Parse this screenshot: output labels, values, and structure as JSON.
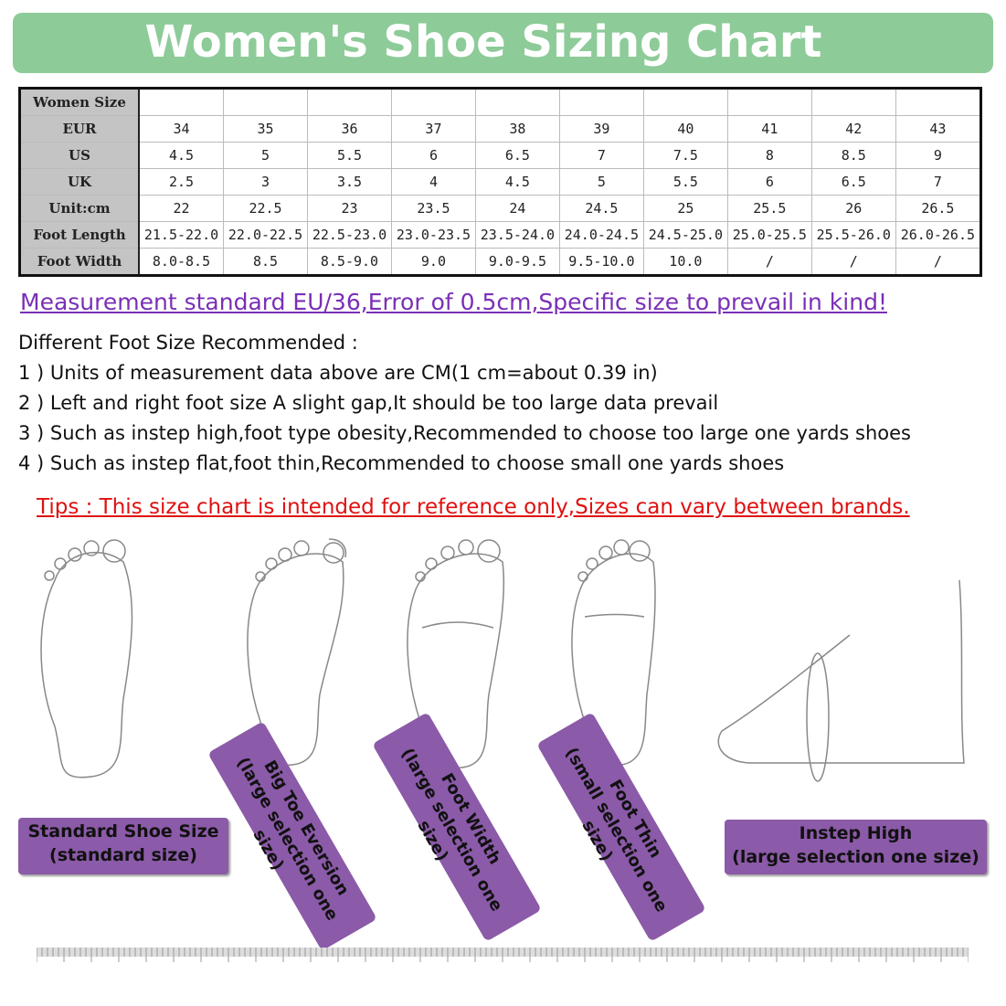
{
  "title": "Women's Shoe Sizing Chart",
  "table": {
    "rows": [
      {
        "label": "Women Size",
        "values": [
          "",
          "",
          "",
          "",
          "",
          "",
          "",
          "",
          "",
          ""
        ]
      },
      {
        "label": "EUR",
        "values": [
          "34",
          "35",
          "36",
          "37",
          "38",
          "39",
          "40",
          "41",
          "42",
          "43"
        ]
      },
      {
        "label": "US",
        "values": [
          "4.5",
          "5",
          "5.5",
          "6",
          "6.5",
          "7",
          "7.5",
          "8",
          "8.5",
          "9"
        ]
      },
      {
        "label": "UK",
        "values": [
          "2.5",
          "3",
          "3.5",
          "4",
          "4.5",
          "5",
          "5.5",
          "6",
          "6.5",
          "7"
        ]
      },
      {
        "label": "Unit:cm",
        "values": [
          "22",
          "22.5",
          "23",
          "23.5",
          "24",
          "24.5",
          "25",
          "25.5",
          "26",
          "26.5"
        ]
      },
      {
        "label": "Foot Length",
        "values": [
          "21.5-22.0",
          "22.0-22.5",
          "22.5-23.0",
          "23.0-23.5",
          "23.5-24.0",
          "24.0-24.5",
          "24.5-25.0",
          "25.0-25.5",
          "25.5-26.0",
          "26.0-26.5"
        ]
      },
      {
        "label": "Foot Width",
        "values": [
          "8.0-8.5",
          "8.5",
          "8.5-9.0",
          "9.0",
          "9.0-9.5",
          "9.5-10.0",
          "10.0",
          "/",
          "/",
          "/"
        ]
      }
    ]
  },
  "measurement": "Measurement standard EU/36,Error of 0.5cm,Specific size to prevail in kind!",
  "recommend": {
    "heading": "Different Foot Size Recommended :",
    "items": [
      "1 ) Units of measurement data above are CM(1 cm=about 0.39 in)",
      "2 ) Left and right foot size A slight gap,It should be too large data prevail",
      "3 ) Such as instep high,foot type obesity,Recommended to choose too large one yards shoes",
      "4 ) Such as instep flat,foot thin,Recommended to choose small one yards shoes"
    ]
  },
  "tips": "Tips : This size chart is intended for reference only,Sizes can vary between brands.",
  "labels": {
    "standard": [
      "Standard Shoe Size",
      "(standard size)"
    ],
    "bigtoe": [
      "Big Toe Eversion",
      "(large selection one size)"
    ],
    "width": [
      "Foot Width",
      "(large selection one size)"
    ],
    "thin": [
      "Foot Thin",
      "(small selection one size)"
    ],
    "instep": [
      "Instep High",
      "(large selection one size)"
    ]
  },
  "colors": {
    "header": "#8dcb99",
    "label": "#8b5aa8",
    "measurement": "#7a2fb5",
    "tips": "#e01010"
  }
}
